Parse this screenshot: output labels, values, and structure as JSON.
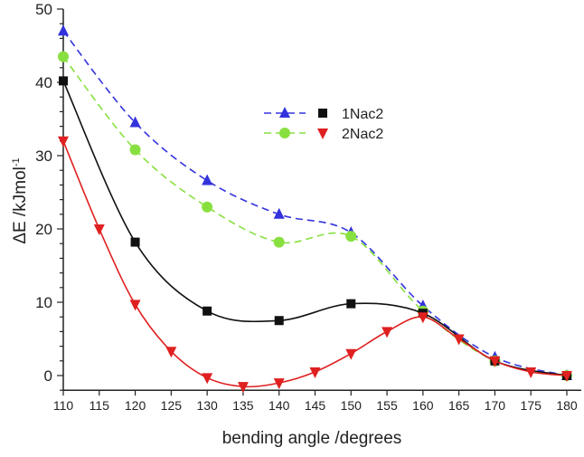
{
  "chart_data": {
    "type": "line",
    "title": "",
    "xlabel": "bending angle /degrees",
    "ylabel": "ΔE /kJmol",
    "ylabel_superscript": "-1",
    "xlim": [
      110,
      182
    ],
    "ylim": [
      -2,
      50
    ],
    "xticks": [
      110,
      115,
      120,
      125,
      130,
      135,
      140,
      145,
      150,
      155,
      160,
      165,
      170,
      175,
      180
    ],
    "yticks": [
      0,
      10,
      20,
      30,
      40,
      50
    ],
    "grid": false,
    "legend": {
      "placement": "top-center",
      "rows": [
        {
          "label": "1Nac2"
        },
        {
          "label": "2Nac2"
        }
      ]
    },
    "series": [
      {
        "color": "#3333dd",
        "marker": "triangle-up",
        "line": "dashed",
        "x": [
          110,
          120,
          130,
          140,
          150,
          160,
          170,
          180
        ],
        "y": [
          47,
          34.5,
          26.6,
          22,
          19.5,
          9.5,
          2.5,
          0
        ]
      },
      {
        "color": "#88e040",
        "marker": "circle",
        "line": "dashed",
        "x": [
          110,
          120,
          130,
          140,
          150,
          160,
          170,
          180
        ],
        "y": [
          43.5,
          30.8,
          23,
          18.2,
          19,
          8.8,
          2,
          0
        ]
      },
      {
        "color": "#111111",
        "marker": "square",
        "line": "solid",
        "x": [
          110,
          120,
          130,
          140,
          150,
          160,
          170,
          180
        ],
        "y": [
          40.2,
          18.2,
          8.8,
          7.5,
          9.8,
          8.5,
          2,
          0
        ]
      },
      {
        "color": "#e02020",
        "marker": "triangle-down",
        "line": "solid",
        "x": [
          110,
          115,
          120,
          125,
          130,
          135,
          140,
          145,
          150,
          155,
          160,
          165,
          170,
          175,
          180
        ],
        "y": [
          32,
          20,
          9.7,
          3.3,
          -0.3,
          -1.5,
          -1,
          0.5,
          3,
          6,
          8,
          5,
          2,
          0.5,
          0
        ]
      }
    ],
    "legend_map": {
      "1Nac2": [
        0,
        2
      ],
      "2Nac2": [
        1,
        3
      ]
    }
  }
}
